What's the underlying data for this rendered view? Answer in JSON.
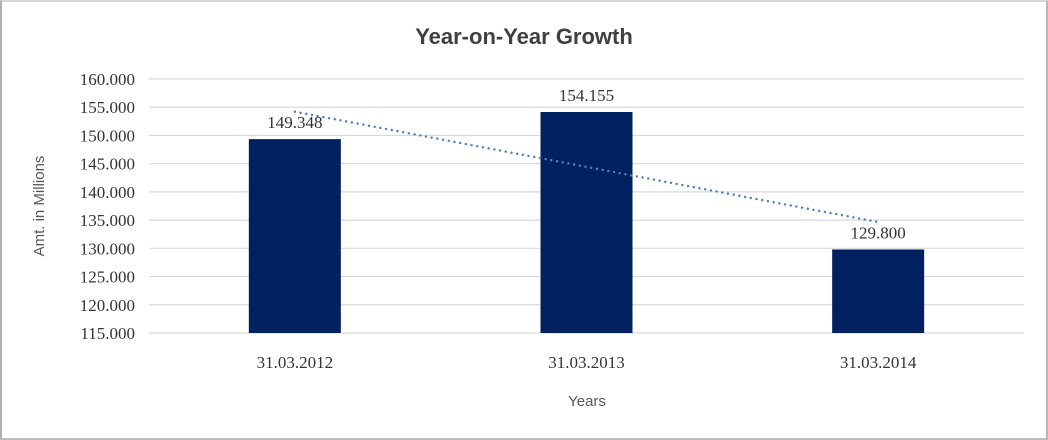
{
  "chart_data": {
    "type": "bar",
    "title": "Year-on-Year Growth",
    "xlabel": "Years",
    "ylabel": "Amt. in Millions",
    "categories": [
      "31.03.2012",
      "31.03.2013",
      "31.03.2014"
    ],
    "values": [
      149.348,
      154.155,
      129.8
    ],
    "value_labels": [
      "149.348",
      "154.155",
      "129.800"
    ],
    "ylim": [
      115,
      160
    ],
    "ytick_step": 5,
    "ytick_labels": [
      "115.000",
      "120.000",
      "125.000",
      "130.000",
      "135.000",
      "140.000",
      "145.000",
      "150.000",
      "155.000",
      "160.000"
    ],
    "grid": true,
    "legend": "none",
    "trendline": {
      "type": "linear",
      "style": "dotted",
      "color": "#4f81bd"
    },
    "colors": {
      "bar": "#002060",
      "gridline": "#d9d9d9",
      "title": "#404040",
      "axis_text": "#333333",
      "axis_title": "#595959"
    }
  }
}
